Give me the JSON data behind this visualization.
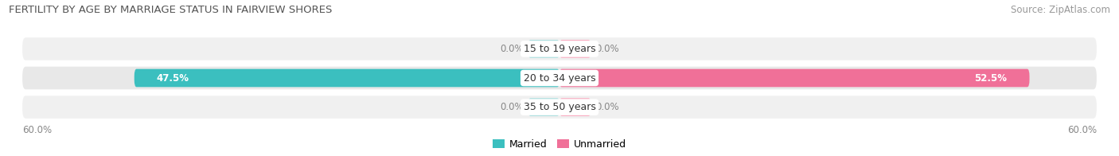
{
  "title": "FERTILITY BY AGE BY MARRIAGE STATUS IN FAIRVIEW SHORES",
  "source": "Source: ZipAtlas.com",
  "categories": [
    "15 to 19 years",
    "20 to 34 years",
    "35 to 50 years"
  ],
  "married_values": [
    0.0,
    47.5,
    0.0
  ],
  "unmarried_values": [
    0.0,
    52.5,
    0.0
  ],
  "max_val": 60.0,
  "married_color": "#3BBFBF",
  "unmarried_color": "#F07098",
  "married_light": "#A8DEDE",
  "unmarried_light": "#F9AABF",
  "row_bg_odd": "#F0F0F0",
  "row_bg_even": "#E8E8E8",
  "title_fontsize": 9.5,
  "source_fontsize": 8.5,
  "cat_label_fontsize": 9,
  "value_label_fontsize": 8.5,
  "axis_label_fontsize": 8.5,
  "legend_fontsize": 9,
  "fig_bg_color": "#FFFFFF"
}
